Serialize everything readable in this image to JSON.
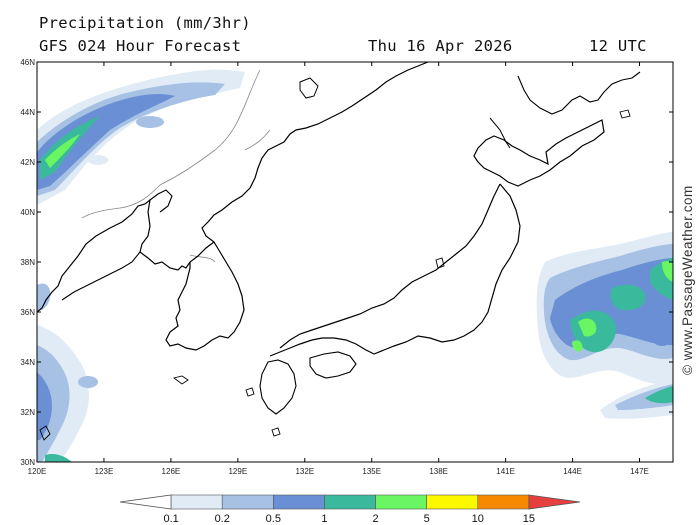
{
  "header": {
    "title": "Precipitation (mm/3hr)",
    "model": "GFS 024 Hour Forecast",
    "date": "Thu 16 Apr 2026",
    "time": "12 UTC"
  },
  "watermark": "© www.PassageWeather.com",
  "map_extent": {
    "lon": [
      120,
      148.5
    ],
    "lat": [
      30,
      46
    ]
  },
  "axes": {
    "lon_ticks": [
      "120E",
      "123E",
      "126E",
      "129E",
      "132E",
      "135E",
      "138E",
      "141E",
      "144E",
      "147E"
    ],
    "lon_values": [
      120,
      123,
      126,
      129,
      132,
      135,
      138,
      141,
      144,
      147
    ],
    "lat_ticks": [
      "46N",
      "44N",
      "42N",
      "40N",
      "38N",
      "36N",
      "34N",
      "32N",
      "30N"
    ],
    "lat_values": [
      46,
      44,
      42,
      40,
      38,
      36,
      34,
      32,
      30
    ]
  },
  "legend": {
    "labels": [
      "0.1",
      "0.2",
      "0.5",
      "1",
      "2",
      "5",
      "10",
      "15"
    ],
    "colors": [
      "#ffffff",
      "#e1ebf6",
      "#a6c1e3",
      "#6a8fd5",
      "#3ab99d",
      "#6af562",
      "#fcf800",
      "#f78900",
      "#e53f3f"
    ]
  }
}
